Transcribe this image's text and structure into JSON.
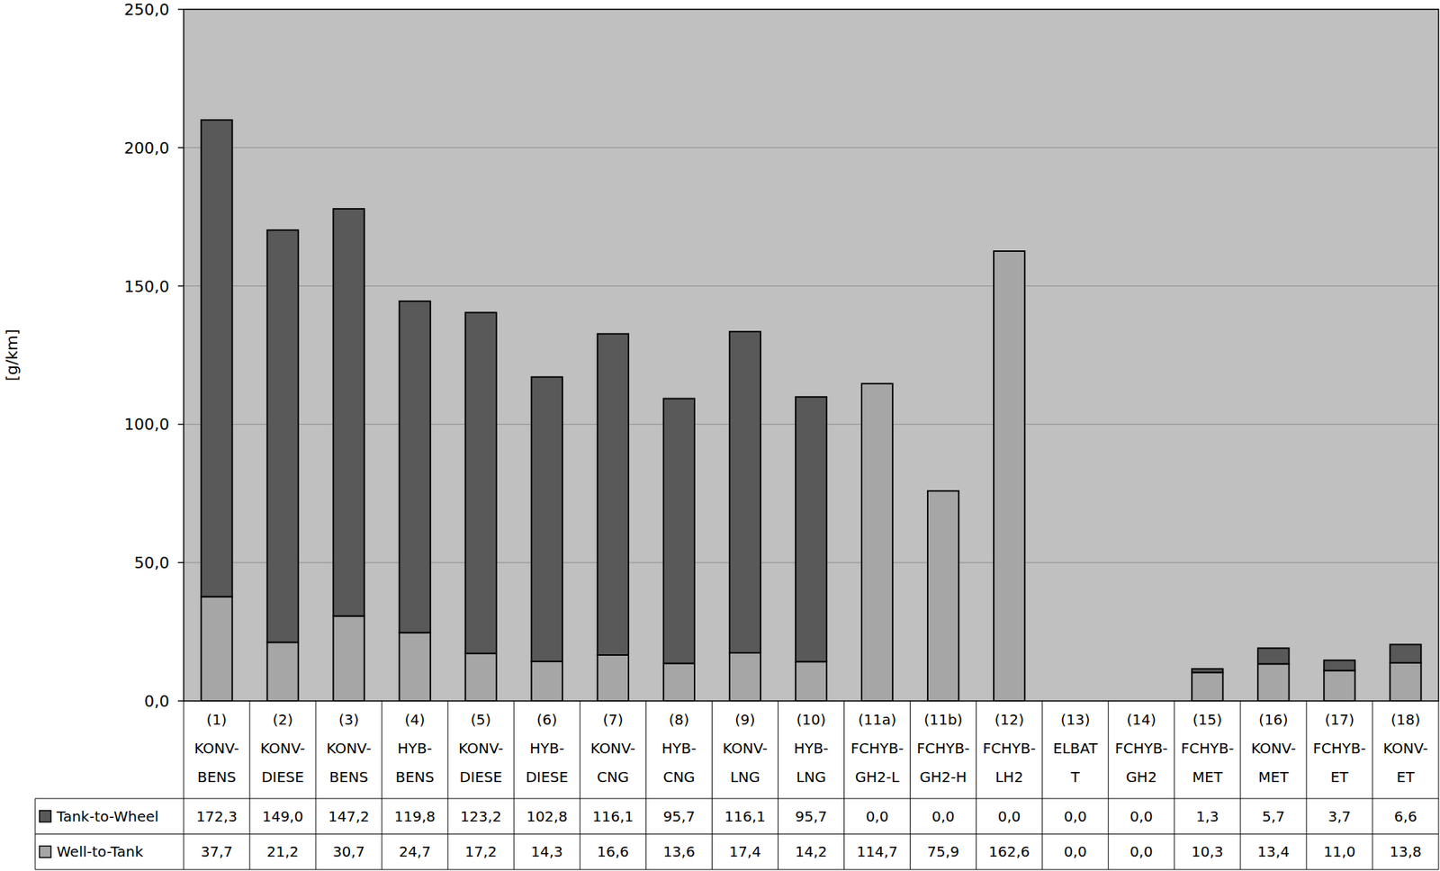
{
  "chart_data": {
    "type": "bar",
    "stacked": true,
    "grid": true,
    "y_label": "[g/km]",
    "ylim": [
      0,
      250
    ],
    "yticks": [
      {
        "value": 0,
        "label": "0,0"
      },
      {
        "value": 50,
        "label": "50,0"
      },
      {
        "value": 100,
        "label": "100,0"
      },
      {
        "value": 150,
        "label": "150,0"
      },
      {
        "value": 200,
        "label": "200,0"
      },
      {
        "value": 250,
        "label": "250,0"
      }
    ],
    "categories": [
      "(1)\nKONV-\nBENS",
      "(2)\nKONV-\nDIESE",
      "(3)\nKONV-\nBENS",
      "(4)\nHYB-\nBENS",
      "(5)\nKONV-\nDIESE",
      "(6)\nHYB-\nDIESE",
      "(7)\nKONV-\nCNG",
      "(8)\nHYB-\nCNG",
      "(9)\nKONV-\nLNG",
      "(10)\nHYB-\nLNG",
      "(11a)\nFCHYB-\nGH2-L",
      "(11b)\nFCHYB-\nGH2-H",
      "(12)\nFCHYB-\nLH2",
      "(13)\nELBAT\nT",
      "(14)\nFCHYB-\nGH2",
      "(15)\nFCHYB-\nMET",
      "(16)\nKONV-\nMET",
      "(17)\nFCHYB-\nET",
      "(18)\nKONV-\nET"
    ],
    "series": [
      {
        "name": "Tank-to-Wheel",
        "color": "#595959",
        "values": [
          172.3,
          149.0,
          147.2,
          119.8,
          123.2,
          102.8,
          116.1,
          95.7,
          116.1,
          95.7,
          0.0,
          0.0,
          0.0,
          0.0,
          0.0,
          1.3,
          5.7,
          3.7,
          6.6
        ],
        "value_labels": [
          "172,3",
          "149,0",
          "147,2",
          "119,8",
          "123,2",
          "102,8",
          "116,1",
          "95,7",
          "116,1",
          "95,7",
          "0,0",
          "0,0",
          "0,0",
          "0,0",
          "0,0",
          "1,3",
          "5,7",
          "3,7",
          "6,6"
        ]
      },
      {
        "name": "Well-to-Tank",
        "color": "#a6a6a6",
        "values": [
          37.7,
          21.2,
          30.7,
          24.7,
          17.2,
          14.3,
          16.6,
          13.6,
          17.4,
          14.2,
          114.7,
          75.9,
          162.6,
          0.0,
          0.0,
          10.3,
          13.4,
          11.0,
          13.8
        ],
        "value_labels": [
          "37,7",
          "21,2",
          "30,7",
          "24,7",
          "17,2",
          "14,3",
          "16,6",
          "13,6",
          "17,4",
          "14,2",
          "114,7",
          "75,9",
          "162,6",
          "0,0",
          "0,0",
          "10,3",
          "13,4",
          "11,0",
          "13,8"
        ]
      }
    ]
  }
}
